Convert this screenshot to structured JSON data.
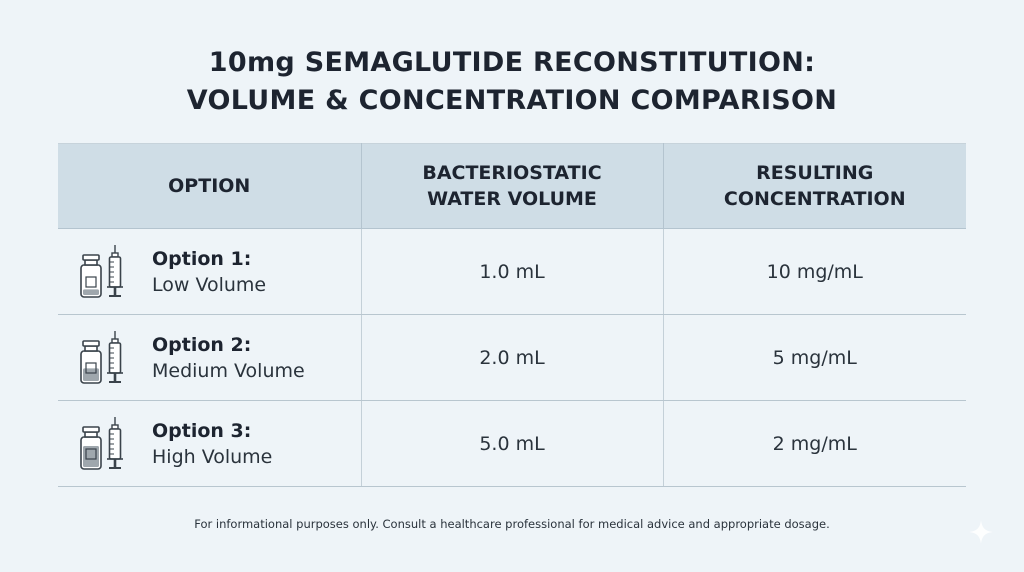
{
  "title": {
    "line1": "10mg SEMAGLUTIDE RECONSTITUTION:",
    "line2": "VOLUME & CONCENTRATION COMPARISON"
  },
  "table": {
    "headers": {
      "option": "OPTION",
      "water_line1": "BACTERIOSTATIC",
      "water_line2": "WATER VOLUME",
      "conc_line1": "RESULTING",
      "conc_line2": "CONCENTRATION"
    },
    "rows": [
      {
        "name": "Option 1:",
        "sub": "Low Volume",
        "water": "1.0 mL",
        "concentration": "10 mg/mL",
        "icon": "vial-syringe-icon",
        "fill_level": 0.2
      },
      {
        "name": "Option 2:",
        "sub": "Medium Volume",
        "water": "2.0 mL",
        "concentration": "5 mg/mL",
        "icon": "vial-syringe-icon",
        "fill_level": 0.45
      },
      {
        "name": "Option 3:",
        "sub": "High Volume",
        "water": "5.0 mL",
        "concentration": "2 mg/mL",
        "icon": "vial-syringe-icon",
        "fill_level": 0.75
      }
    ]
  },
  "footer": "For informational purposes only. Consult a healthcare professional for medical advice and appropriate dosage.",
  "colors": {
    "background": "#eef4f8",
    "header_bg": "#cfdde6",
    "text": "#1d2430",
    "vial_fill": "#8e989f"
  }
}
